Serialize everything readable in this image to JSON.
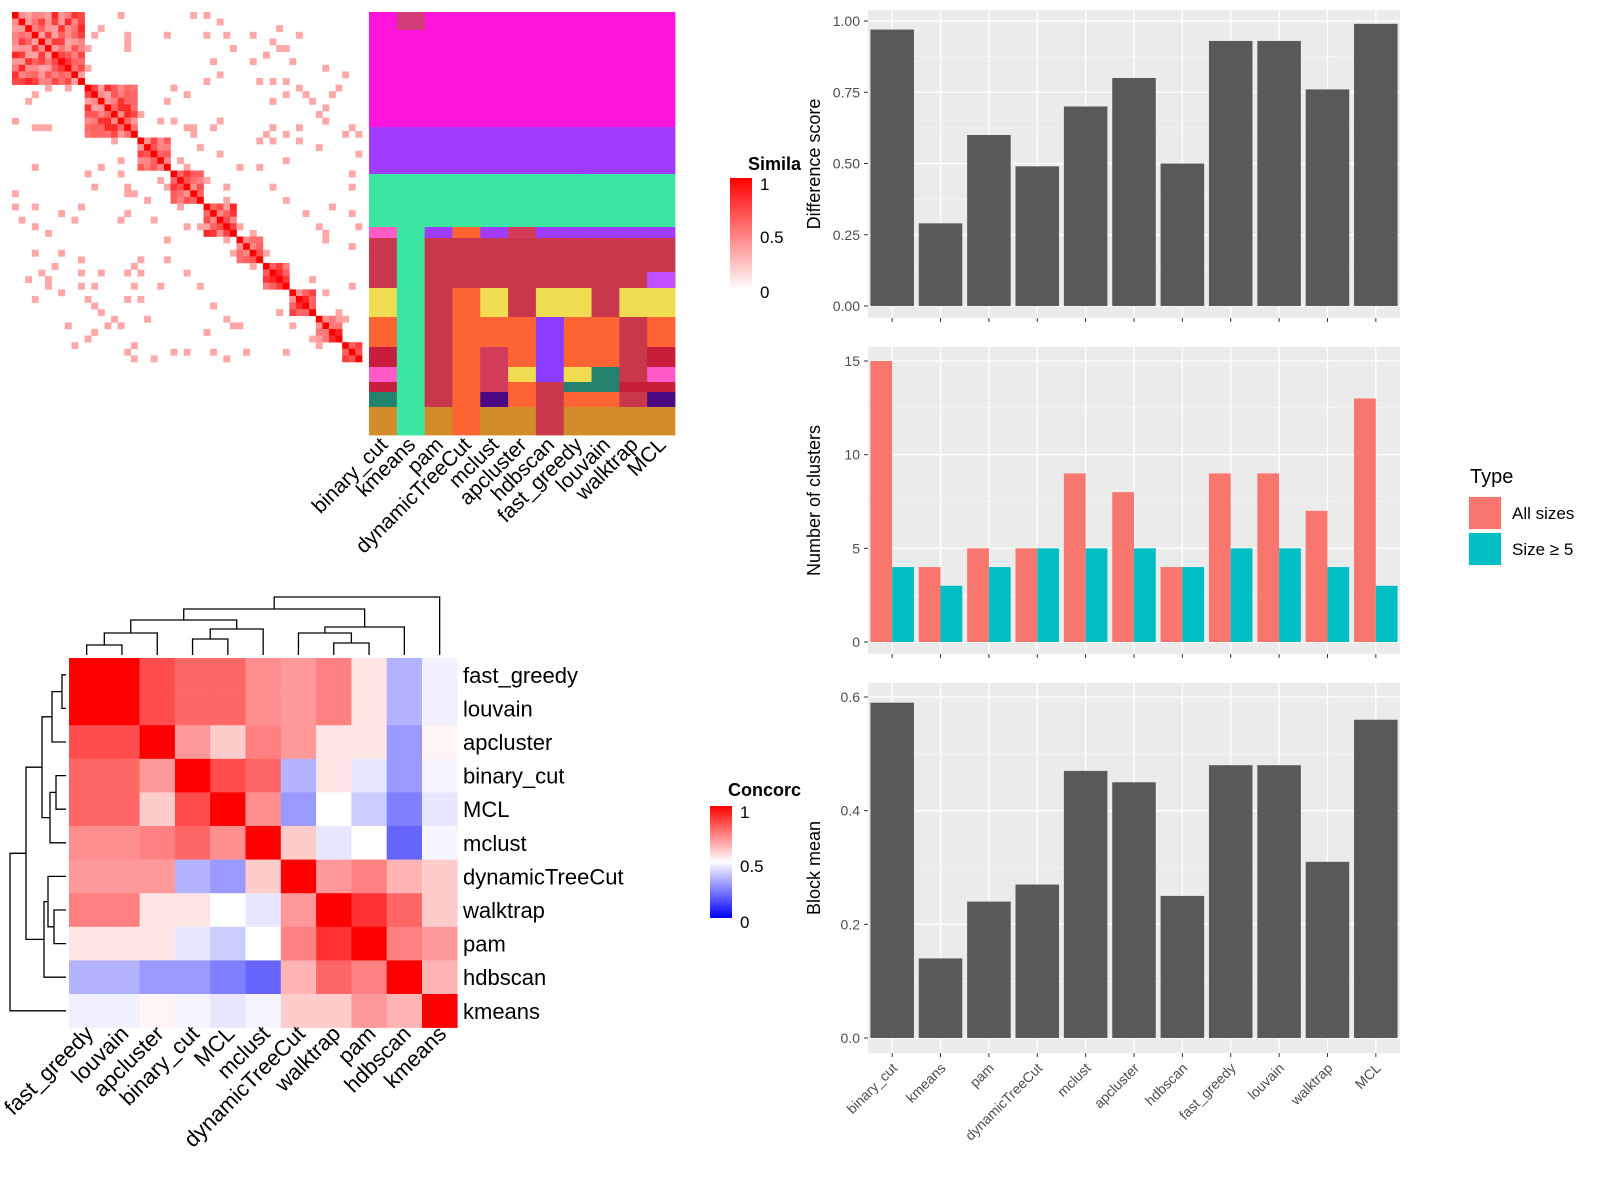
{
  "methods": [
    "binary_cut",
    "kmeans",
    "pam",
    "dynamicTreeCut",
    "mclust",
    "apcluster",
    "hdbscan",
    "fast_greedy",
    "louvain",
    "walktrap",
    "MCL"
  ],
  "similarity_heatmap": {
    "legend_title": "Simila",
    "legend_ticks": [
      "1",
      "0.5",
      "0"
    ],
    "colors": {
      "high": "#ff0000",
      "low": "#ffffff"
    }
  },
  "cluster_colors": [
    "#ff14dc",
    "#a03cff",
    "#3ce6a0",
    "#c8374b",
    "#f0dc50",
    "#ff6432",
    "#d23c5a",
    "#8c3cff",
    "#e1b4ff",
    "#c81e3c",
    "#ff5ac8",
    "#23826e",
    "#4b0a82",
    "#d28c28"
  ],
  "concordance_heatmap": {
    "legend_title": "Concorc",
    "legend_ticks": [
      "1",
      "0.5",
      "0"
    ],
    "row_order": [
      "fast_greedy",
      "louvain",
      "apcluster",
      "binary_cut",
      "MCL",
      "mclust",
      "dynamicTreeCut",
      "walktrap",
      "pam",
      "hdbscan",
      "kmeans"
    ],
    "values": [
      [
        1.0,
        1.0,
        0.85,
        0.8,
        0.8,
        0.72,
        0.7,
        0.75,
        0.55,
        0.35,
        0.47
      ],
      [
        1.0,
        1.0,
        0.85,
        0.8,
        0.8,
        0.72,
        0.7,
        0.75,
        0.55,
        0.35,
        0.47
      ],
      [
        0.85,
        0.85,
        1.0,
        0.7,
        0.6,
        0.75,
        0.7,
        0.55,
        0.55,
        0.3,
        0.52
      ],
      [
        0.8,
        0.8,
        0.7,
        1.0,
        0.85,
        0.8,
        0.35,
        0.55,
        0.45,
        0.3,
        0.48
      ],
      [
        0.8,
        0.8,
        0.6,
        0.85,
        1.0,
        0.72,
        0.3,
        0.5,
        0.4,
        0.25,
        0.45
      ],
      [
        0.72,
        0.72,
        0.75,
        0.8,
        0.72,
        1.0,
        0.6,
        0.45,
        0.5,
        0.2,
        0.48
      ],
      [
        0.7,
        0.7,
        0.7,
        0.35,
        0.3,
        0.6,
        1.0,
        0.7,
        0.75,
        0.65,
        0.6
      ],
      [
        0.75,
        0.75,
        0.55,
        0.55,
        0.5,
        0.45,
        0.7,
        1.0,
        0.9,
        0.8,
        0.6
      ],
      [
        0.55,
        0.55,
        0.55,
        0.45,
        0.4,
        0.5,
        0.75,
        0.9,
        1.0,
        0.75,
        0.7
      ],
      [
        0.35,
        0.35,
        0.3,
        0.3,
        0.25,
        0.2,
        0.65,
        0.8,
        0.75,
        1.0,
        0.65
      ],
      [
        0.47,
        0.47,
        0.52,
        0.48,
        0.45,
        0.48,
        0.6,
        0.6,
        0.7,
        0.65,
        1.0
      ]
    ],
    "colors": {
      "high": "#ff0000",
      "mid": "#ffffff",
      "low": "#0000ff"
    }
  },
  "chart_data": [
    {
      "type": "bar",
      "ylabel": "Difference score",
      "categories": [
        "binary_cut",
        "kmeans",
        "pam",
        "dynamicTreeCut",
        "mclust",
        "apcluster",
        "hdbscan",
        "fast_greedy",
        "louvain",
        "walktrap",
        "MCL"
      ],
      "values": [
        0.97,
        0.29,
        0.6,
        0.49,
        0.7,
        0.8,
        0.5,
        0.93,
        0.93,
        0.76,
        0.99
      ],
      "ylim": [
        0,
        1.0
      ],
      "yticks": [
        "0.00",
        "0.25",
        "0.50",
        "0.75",
        "1.00"
      ],
      "color": "#595959"
    },
    {
      "type": "bar",
      "ylabel": "Number of clusters",
      "categories": [
        "binary_cut",
        "kmeans",
        "pam",
        "dynamicTreeCut",
        "mclust",
        "apcluster",
        "hdbscan",
        "fast_greedy",
        "louvain",
        "walktrap",
        "MCL"
      ],
      "series": [
        {
          "name": "All sizes",
          "values": [
            15,
            4,
            5,
            5,
            9,
            8,
            4,
            9,
            9,
            7,
            13
          ],
          "color": "#f8766d"
        },
        {
          "name": "Size ≥ 5",
          "values": [
            4,
            3,
            4,
            5,
            5,
            5,
            4,
            5,
            5,
            4,
            3
          ],
          "color": "#00bfc4"
        }
      ],
      "ylim": [
        0,
        15
      ],
      "yticks": [
        "0",
        "5",
        "10",
        "15"
      ],
      "legend_title": "Type",
      "legend_position": "right"
    },
    {
      "type": "bar",
      "ylabel": "Block mean",
      "categories": [
        "binary_cut",
        "kmeans",
        "pam",
        "dynamicTreeCut",
        "mclust",
        "apcluster",
        "hdbscan",
        "fast_greedy",
        "louvain",
        "walktrap",
        "MCL"
      ],
      "values": [
        0.59,
        0.14,
        0.24,
        0.27,
        0.47,
        0.45,
        0.25,
        0.48,
        0.48,
        0.31,
        0.56
      ],
      "ylim": [
        0,
        0.6
      ],
      "yticks": [
        "0.0",
        "0.2",
        "0.4",
        "0.6"
      ],
      "color": "#595959"
    }
  ]
}
